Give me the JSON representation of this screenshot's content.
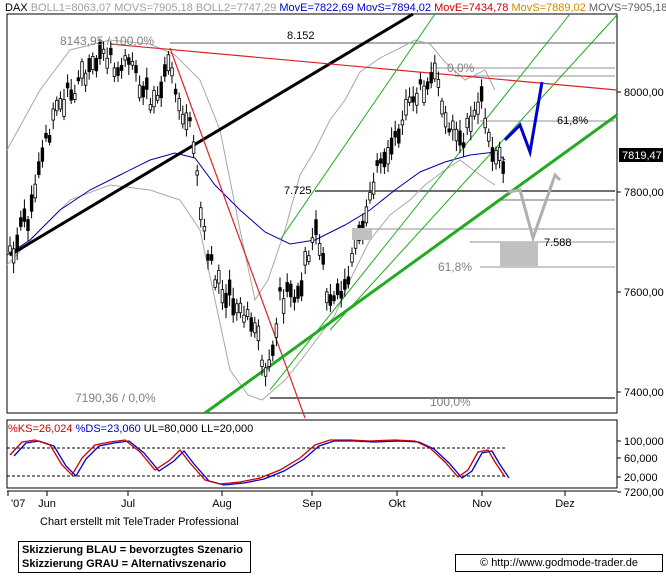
{
  "header": {
    "symbol": "DAX",
    "items": [
      {
        "text": "BOLL1=8063,07",
        "color": "#a0a0a0"
      },
      {
        "text": "MOVS=7905,18",
        "color": "#a0a0a0"
      },
      {
        "text": "BOLL2=7747,29",
        "color": "#a0a0a0"
      },
      {
        "text": "MovE=7822,69",
        "color": "#0000cc"
      },
      {
        "text": "MovS=7894,02",
        "color": "#0000cc"
      },
      {
        "text": "MovE=7434,78",
        "color": "#cc0000"
      },
      {
        "text": "MovS=7889,02",
        "color": "#cc8800"
      },
      {
        "text": "MOVS=7905,18",
        "color": "#606060"
      }
    ]
  },
  "chart_data": {
    "type": "candlestick",
    "price_axis": {
      "ticks": [
        "8000,00",
        "7800,00",
        "7600,00",
        "7400,00",
        "7200,00"
      ],
      "min": 7100,
      "max": 8260
    },
    "last_price_label": "7819,47",
    "time_axis": {
      "labels": [
        "'07",
        "Jun",
        "Jul",
        "Aug",
        "Sep",
        "Okt",
        "Nov",
        "Dez"
      ]
    },
    "annotations": {
      "high": "8143,95 / 100,0%",
      "level_8152": "8.152",
      "fib_0": "0,0%",
      "fib_618_upper": "61,8%",
      "level_7725": "7.725",
      "level_7588": "7.588",
      "fib_618_lower": "61,8%",
      "low": "7190,36 / 0,0%",
      "fib_100": "100,0%"
    },
    "stochastic": {
      "legend": [
        {
          "text": "%KS=26,024",
          "color": "#cc0000"
        },
        {
          "text": "%DS=23,060",
          "color": "#0000cc"
        },
        {
          "text": "UL=80,000",
          "color": "#000000"
        },
        {
          "text": "LL=20,000",
          "color": "#000000"
        }
      ],
      "ticks": [
        "100,000",
        "60,000",
        "20,000"
      ]
    },
    "colors": {
      "up": "#ffffff",
      "down": "#000000",
      "blue_scenario": "#0000cc",
      "grey_scenario": "#b0b0b0",
      "trend_green": "#22aa22",
      "trend_red": "#dd2222"
    }
  },
  "footer": {
    "credit": "Chart erstellt mit TeleTrader Professional",
    "scenario_blue": "Skizzierung BLAU = bevorzugtes Szenario",
    "scenario_grey": "Skizzierung GRAU = Alternativszenario",
    "url": "© http://www.godmode-trader.de"
  }
}
